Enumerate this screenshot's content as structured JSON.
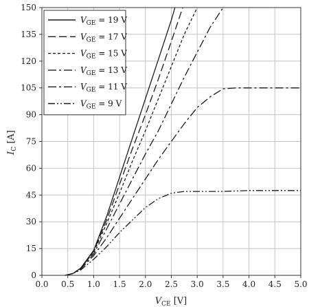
{
  "chart_data": {
    "type": "line",
    "xlabel": {
      "var": "V",
      "sub": "CE",
      "unit": " [V]"
    },
    "ylabel": {
      "var": "I",
      "sub": "C",
      "unit": " [A]"
    },
    "xlim": [
      0,
      5
    ],
    "ylim": [
      0,
      150
    ],
    "xticks": [
      0,
      0.5,
      1,
      1.5,
      2,
      2.5,
      3,
      3.5,
      4,
      4.5,
      5
    ],
    "xtick_labels": [
      "0.0",
      "0.5",
      "1.0",
      "1.5",
      "2.0",
      "2.5",
      "3.0",
      "3.5",
      "4.0",
      "4.5",
      "5.0"
    ],
    "yticks": [
      0,
      15,
      30,
      45,
      60,
      75,
      90,
      105,
      120,
      135,
      150
    ],
    "ytick_labels": [
      "0",
      "15",
      "30",
      "45",
      "60",
      "75",
      "90",
      "105",
      "120",
      "135",
      "150"
    ],
    "grid": true,
    "legend_position": "top-left",
    "series": [
      {
        "legend": {
          "var": "V",
          "sub": "GE",
          "val": " = 19 V"
        },
        "dash": "solid",
        "points": [
          [
            0.45,
            0
          ],
          [
            0.6,
            1
          ],
          [
            0.75,
            4
          ],
          [
            1.0,
            14
          ],
          [
            1.25,
            33
          ],
          [
            1.5,
            55
          ],
          [
            1.75,
            77
          ],
          [
            2.0,
            99
          ],
          [
            2.25,
            121
          ],
          [
            2.5,
            143
          ],
          [
            2.57,
            150
          ]
        ]
      },
      {
        "legend": {
          "var": "V",
          "sub": "GE",
          "val": " = 17 V"
        },
        "dash": "longdash",
        "points": [
          [
            0.45,
            0
          ],
          [
            0.6,
            1
          ],
          [
            0.75,
            4
          ],
          [
            1.0,
            13.5
          ],
          [
            1.25,
            31
          ],
          [
            1.5,
            51
          ],
          [
            1.75,
            71
          ],
          [
            2.0,
            90
          ],
          [
            2.25,
            110
          ],
          [
            2.5,
            131
          ],
          [
            2.72,
            150
          ]
        ]
      },
      {
        "legend": {
          "var": "V",
          "sub": "GE",
          "val": " = 15 V"
        },
        "dash": "shortdash",
        "points": [
          [
            0.45,
            0
          ],
          [
            0.6,
            1
          ],
          [
            0.75,
            4
          ],
          [
            1.0,
            13
          ],
          [
            1.25,
            29
          ],
          [
            1.5,
            46
          ],
          [
            1.75,
            64
          ],
          [
            2.0,
            81
          ],
          [
            2.25,
            99
          ],
          [
            2.5,
            117
          ],
          [
            2.75,
            135
          ],
          [
            3.0,
            150
          ]
        ]
      },
      {
        "legend": {
          "var": "V",
          "sub": "GE",
          "val": " = 13 V"
        },
        "dash": "dashdot",
        "points": [
          [
            0.45,
            0
          ],
          [
            0.6,
            1
          ],
          [
            0.75,
            4
          ],
          [
            1.0,
            12
          ],
          [
            1.25,
            26
          ],
          [
            1.5,
            40
          ],
          [
            1.75,
            54
          ],
          [
            2.0,
            68
          ],
          [
            2.25,
            81
          ],
          [
            2.5,
            96
          ],
          [
            2.75,
            111
          ],
          [
            3.0,
            125
          ],
          [
            3.25,
            139
          ],
          [
            3.5,
            150
          ]
        ]
      },
      {
        "legend": {
          "var": "V",
          "sub": "GE",
          "val": " = 11 V"
        },
        "dash": "dashdot",
        "points": [
          [
            0.45,
            0
          ],
          [
            0.6,
            1
          ],
          [
            0.75,
            3.5
          ],
          [
            1.0,
            11
          ],
          [
            1.25,
            21
          ],
          [
            1.5,
            32
          ],
          [
            1.75,
            43
          ],
          [
            2.0,
            54
          ],
          [
            2.25,
            65
          ],
          [
            2.5,
            75
          ],
          [
            2.75,
            85
          ],
          [
            3.0,
            94
          ],
          [
            3.25,
            100
          ],
          [
            3.5,
            104.5
          ],
          [
            3.75,
            105
          ],
          [
            4.0,
            105
          ],
          [
            4.5,
            105
          ],
          [
            5.0,
            105
          ]
        ]
      },
      {
        "legend": {
          "var": "V",
          "sub": "GE",
          "val": " = 9 V"
        },
        "dash": "dashdotdot",
        "points": [
          [
            0.45,
            0
          ],
          [
            0.6,
            1
          ],
          [
            0.75,
            3
          ],
          [
            1.0,
            9
          ],
          [
            1.25,
            16
          ],
          [
            1.5,
            24
          ],
          [
            1.75,
            31
          ],
          [
            2.0,
            38
          ],
          [
            2.25,
            43
          ],
          [
            2.5,
            46
          ],
          [
            2.75,
            47
          ],
          [
            3.0,
            47
          ],
          [
            3.5,
            47
          ],
          [
            4.0,
            47.5
          ],
          [
            4.5,
            47.5
          ],
          [
            5.0,
            47.5
          ]
        ]
      }
    ]
  }
}
